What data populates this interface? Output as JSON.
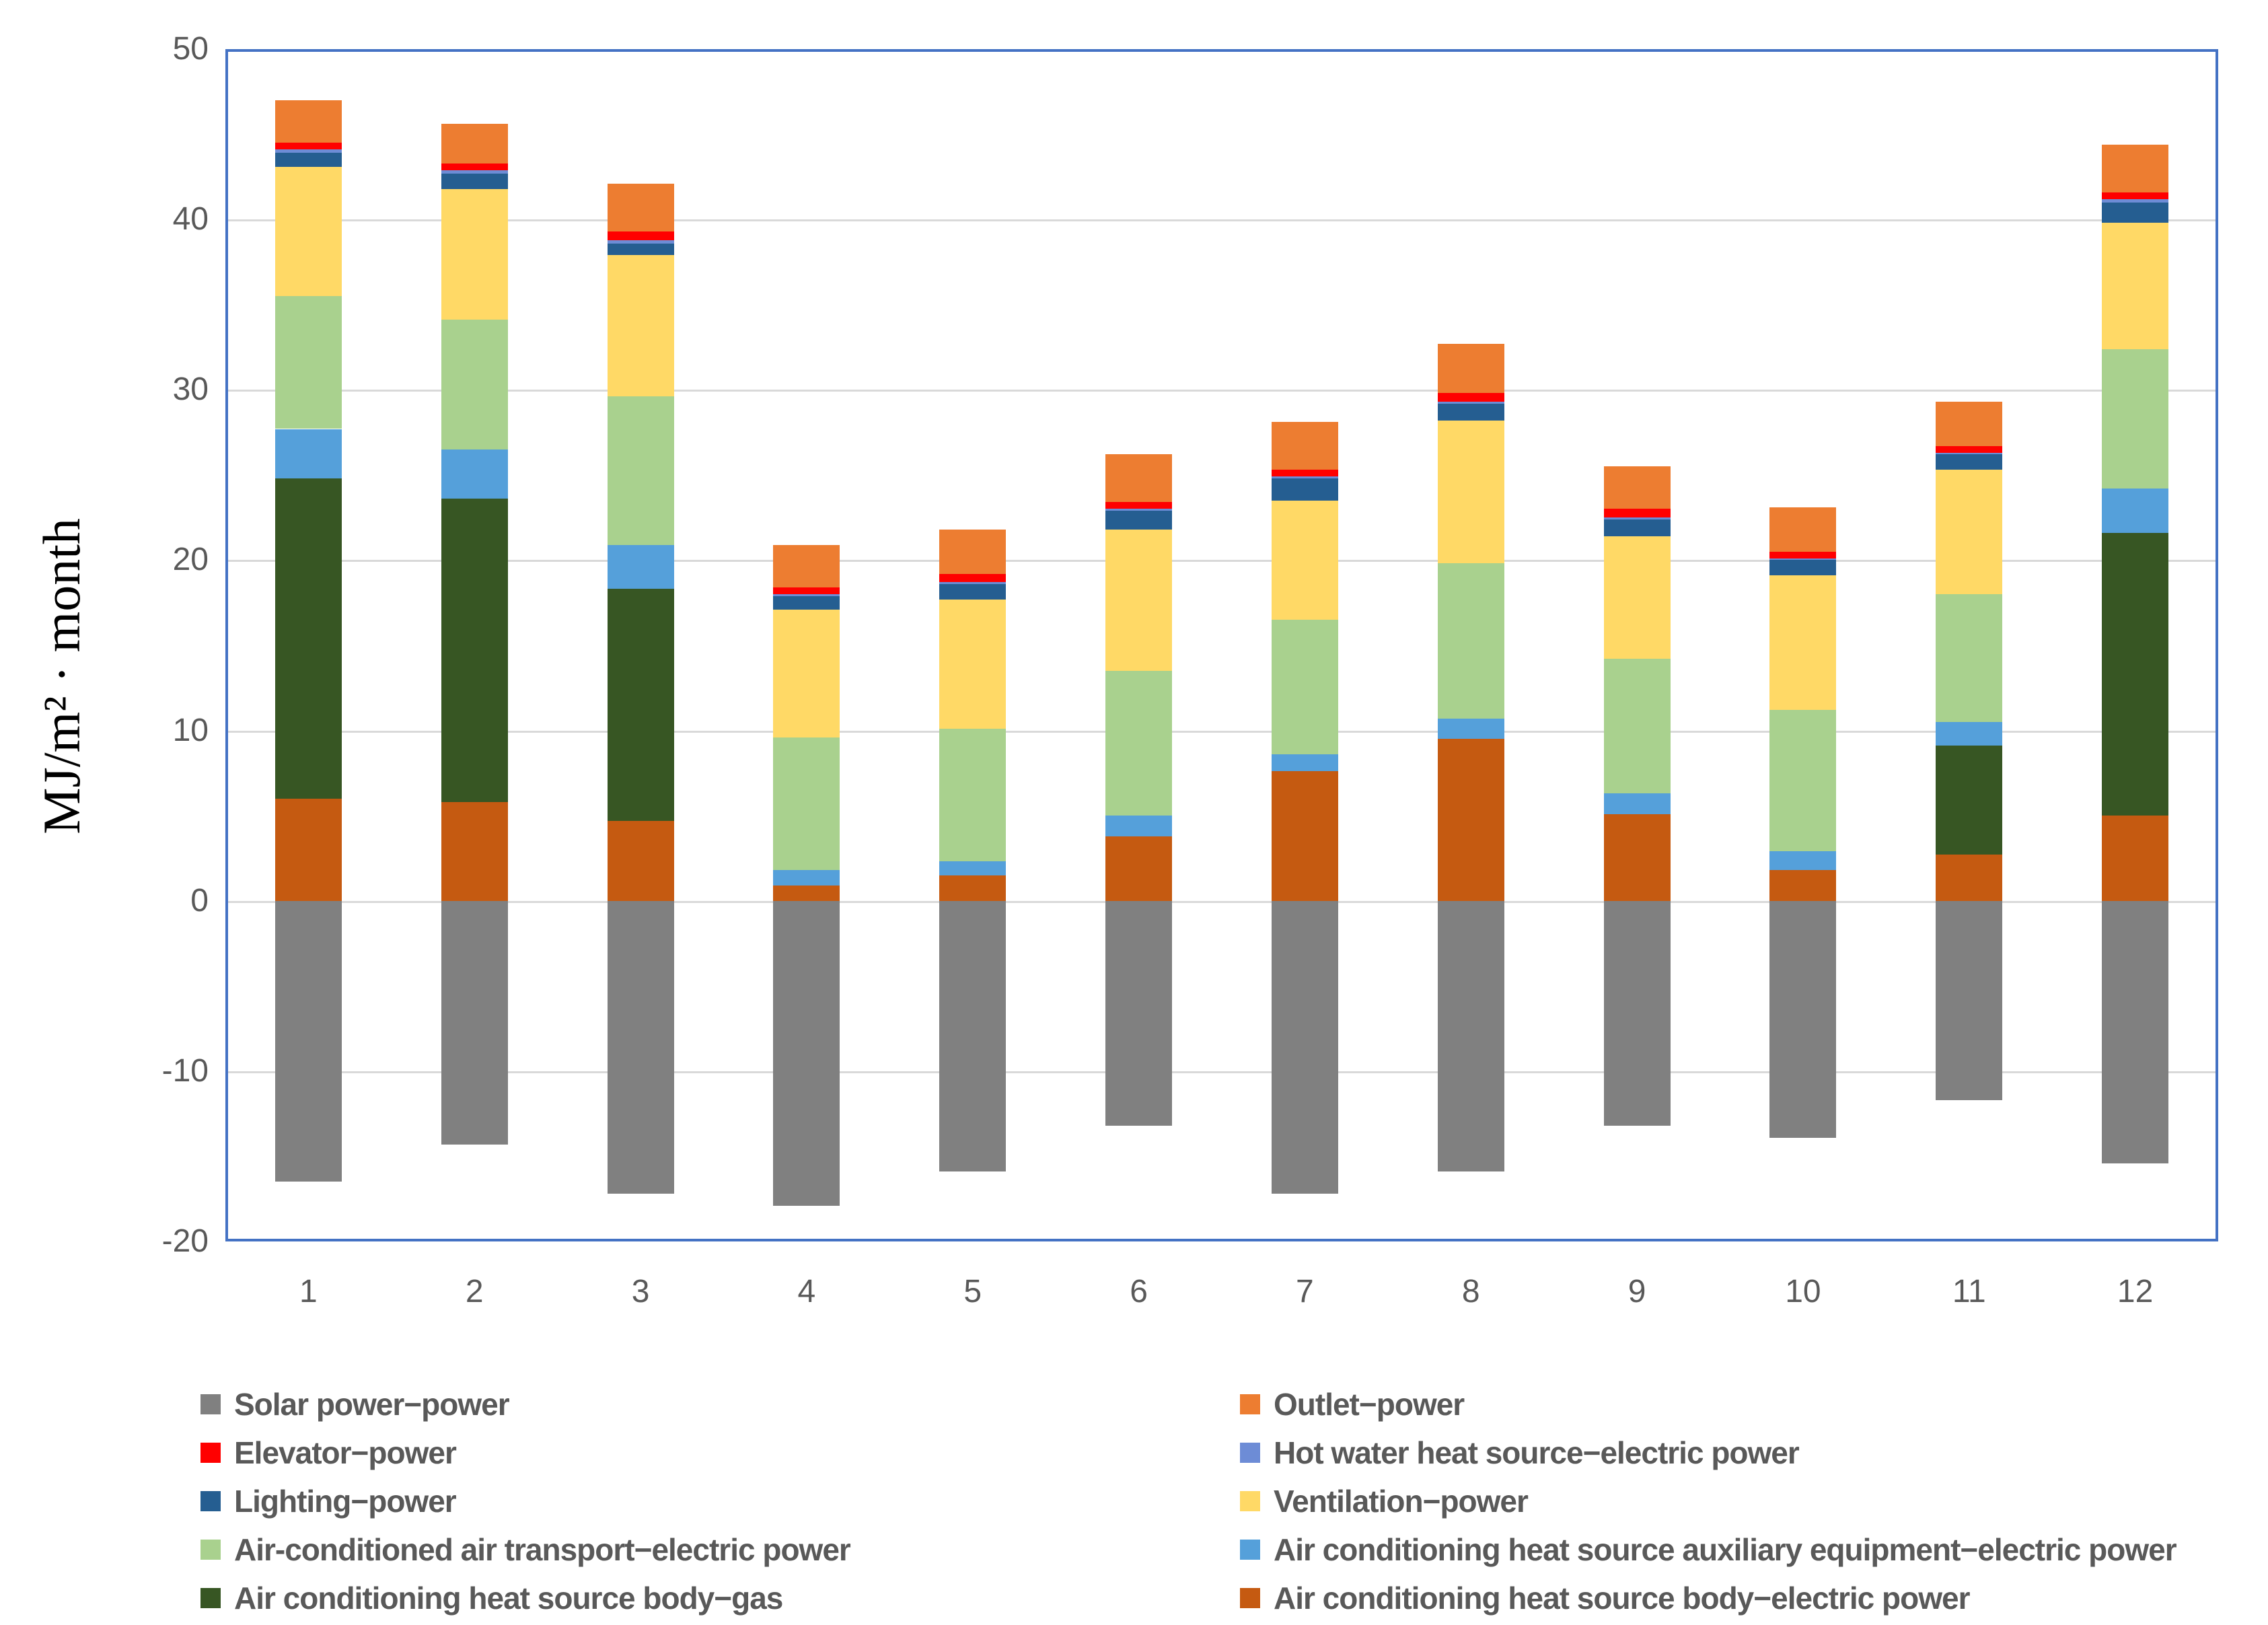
{
  "y_axis": {
    "title": "MJ/m² · month",
    "ticks": [
      "50",
      "40",
      "30",
      "20",
      "10",
      "0",
      "-10",
      "-20"
    ]
  },
  "x_axis": {
    "categories": [
      "1",
      "2",
      "3",
      "4",
      "5",
      "6",
      "7",
      "8",
      "9",
      "10",
      "11",
      "12"
    ]
  },
  "colors": {
    "plot_border": "#4472C4",
    "gridline": "#D9D9D9",
    "axis_text": "#595959",
    "legend_text": "#595959"
  },
  "chart_data": {
    "type": "bar",
    "stacked": true,
    "title": "",
    "xlabel": "",
    "ylabel": "MJ/m² · month",
    "ylim": [
      -20,
      50
    ],
    "grid": true,
    "gridline_values": [
      40,
      30,
      20,
      10,
      0,
      -10
    ],
    "legend_position": "bottom",
    "categories": [
      1,
      2,
      3,
      4,
      5,
      6,
      7,
      8,
      9,
      10,
      11,
      12
    ],
    "series": [
      {
        "key": "ac-body-electric",
        "name": "Air conditioning heat source body−electric power",
        "color": "#C55A11",
        "values": [
          6.0,
          5.8,
          4.7,
          0.9,
          1.5,
          3.8,
          7.6,
          9.5,
          5.1,
          1.8,
          2.7,
          5.0
        ]
      },
      {
        "key": "ac-body-gas",
        "name": "Air conditioning heat source body−gas",
        "color": "#375623",
        "values": [
          18.8,
          17.8,
          13.6,
          0,
          0,
          0,
          0,
          0,
          0,
          0,
          6.4,
          16.6
        ]
      },
      {
        "key": "ac-aux-electric",
        "name": "Air conditioning heat source auxiliary equipment−electric power",
        "color": "#55A0DA",
        "values": [
          2.9,
          2.9,
          2.6,
          0.9,
          0.8,
          1.2,
          1.0,
          1.2,
          1.2,
          1.1,
          1.4,
          2.6
        ]
      },
      {
        "key": "air-transport",
        "name": "Air-conditioned air transport−electric power",
        "color": "#A9D18E",
        "values": [
          7.8,
          7.6,
          8.7,
          7.8,
          7.8,
          8.5,
          7.9,
          9.1,
          7.9,
          8.3,
          7.5,
          8.2
        ]
      },
      {
        "key": "ventilation",
        "name": "Ventilation−power",
        "color": "#FFD966",
        "values": [
          7.6,
          7.7,
          8.3,
          7.5,
          7.6,
          8.3,
          7.0,
          8.4,
          7.2,
          7.9,
          7.3,
          7.4
        ]
      },
      {
        "key": "lighting",
        "name": "Lighting−power",
        "color": "#255E91",
        "values": [
          0.8,
          0.9,
          0.7,
          0.8,
          0.9,
          1.1,
          1.3,
          1.0,
          1.0,
          0.9,
          0.9,
          1.2
        ]
      },
      {
        "key": "hot-water",
        "name": "Hot water heat source−electric power",
        "color": "#6D8CD6",
        "values": [
          0.2,
          0.2,
          0.2,
          0.1,
          0.1,
          0.1,
          0.1,
          0.1,
          0.1,
          0.1,
          0.1,
          0.2
        ]
      },
      {
        "key": "elevator",
        "name": "Elevator−power",
        "color": "#FF0000",
        "values": [
          0.4,
          0.4,
          0.5,
          0.4,
          0.5,
          0.4,
          0.4,
          0.5,
          0.5,
          0.4,
          0.4,
          0.4
        ]
      },
      {
        "key": "outlet",
        "name": "Outlet−power",
        "color": "#ED7D31",
        "values": [
          2.5,
          2.3,
          2.8,
          2.5,
          2.6,
          2.8,
          2.8,
          2.9,
          2.5,
          2.6,
          2.6,
          2.8
        ]
      }
    ],
    "negative_series": {
      "key": "solar-power",
      "name": "Solar power−power",
      "color": "#808080",
      "values": [
        -16.5,
        -14.3,
        -17.2,
        -17.9,
        -15.9,
        -13.2,
        -17.2,
        -15.9,
        -13.2,
        -13.9,
        -11.7,
        -15.4
      ]
    },
    "legend_columns": {
      "left": [
        "solar-power",
        "elevator",
        "lighting",
        "air-transport",
        "ac-body-gas"
      ],
      "right": [
        "outlet",
        "hot-water",
        "ventilation",
        "ac-aux-electric",
        "ac-body-electric"
      ]
    }
  }
}
